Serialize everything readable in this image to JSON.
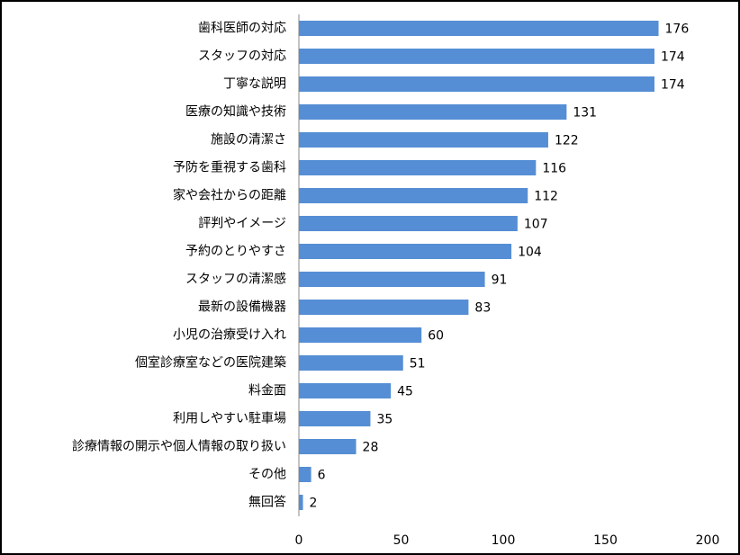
{
  "chart_data": {
    "type": "bar",
    "orientation": "horizontal",
    "categories": [
      "歯科医師の対応",
      "スタッフの対応",
      "丁寧な説明",
      "医療の知識や技術",
      "施設の清潔さ",
      "予防を重視する歯科",
      "家や会社からの距離",
      "評判やイメージ",
      "予約のとりやすさ",
      "スタッフの清潔感",
      "最新の設備機器",
      "小児の治療受け入れ",
      "個室診療室などの医院建築",
      "料金面",
      "利用しやすい駐車場",
      "診療情報の開示や個人情報の取り扱い",
      "その他",
      "無回答"
    ],
    "values": [
      176,
      174,
      174,
      131,
      122,
      116,
      112,
      107,
      104,
      91,
      83,
      60,
      51,
      45,
      35,
      28,
      6,
      2
    ],
    "color": "#558ed5",
    "xlim": [
      0,
      200
    ],
    "xticks": [
      0,
      50,
      100,
      150,
      200
    ],
    "grid": false
  }
}
